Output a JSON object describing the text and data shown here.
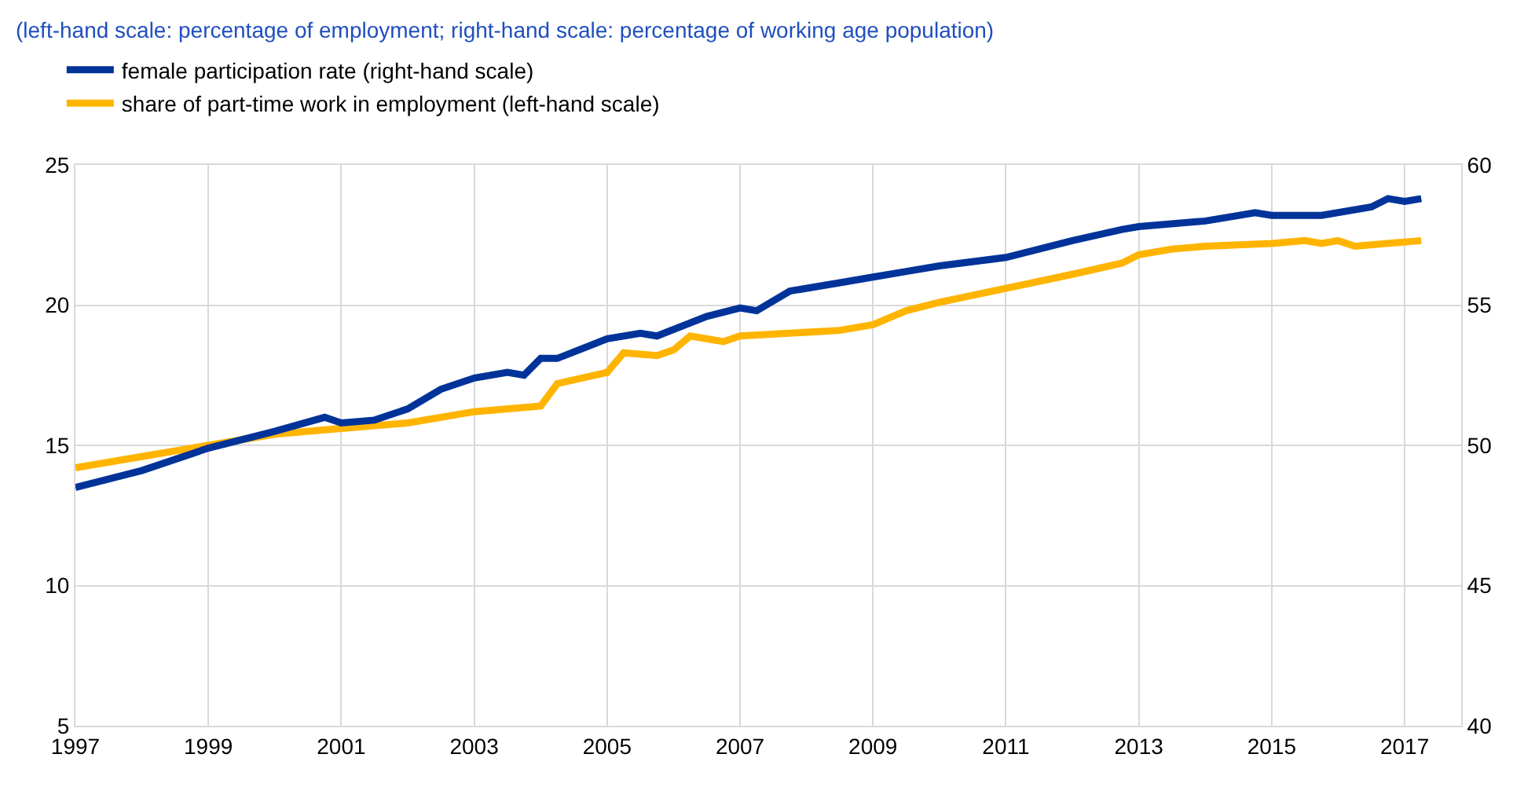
{
  "chart_data": {
    "type": "line",
    "subtitle": "(left-hand scale: percentage of employment; right-hand scale: percentage of working age population)",
    "series": [
      {
        "name": "female participation rate (right-hand scale)",
        "color": "#003399",
        "axis": "y2",
        "x": [
          1997.0,
          1998.0,
          1999.0,
          2000.0,
          2000.75,
          2001.0,
          2001.5,
          2002.0,
          2002.5,
          2003.0,
          2003.5,
          2003.75,
          2004.0,
          2004.25,
          2005.0,
          2005.5,
          2005.75,
          2006.5,
          2007.0,
          2007.25,
          2007.75,
          2008.5,
          2009.0,
          2009.5,
          2010.0,
          2011.0,
          2012.0,
          2012.75,
          2013.0,
          2014.0,
          2014.75,
          2015.0,
          2015.5,
          2015.75,
          2016.5,
          2016.75,
          2017.0,
          2017.25
        ],
        "values": [
          48.5,
          49.1,
          49.9,
          50.5,
          51.0,
          50.8,
          50.9,
          51.3,
          52.0,
          52.4,
          52.6,
          52.5,
          53.1,
          53.1,
          53.8,
          54.0,
          53.9,
          54.6,
          54.9,
          54.8,
          55.5,
          55.8,
          56.0,
          56.2,
          56.4,
          56.7,
          57.3,
          57.7,
          57.8,
          58.0,
          58.3,
          58.2,
          58.2,
          58.2,
          58.5,
          58.8,
          58.7,
          58.8
        ]
      },
      {
        "name": "share of part-time work in employment (left-hand scale)",
        "color": "#ffb400",
        "x": [
          1997.0,
          1998.0,
          1999.0,
          2000.0,
          2001.0,
          2002.0,
          2003.0,
          2004.0,
          2004.25,
          2005.0,
          2005.25,
          2005.75,
          2006.0,
          2006.25,
          2006.75,
          2007.0,
          2008.5,
          2009.0,
          2009.5,
          2010.0,
          2011.0,
          2012.0,
          2012.75,
          2013.0,
          2013.5,
          2014.0,
          2015.0,
          2015.5,
          2015.75,
          2016.0,
          2016.25,
          2017.25
        ],
        "values": [
          14.2,
          14.6,
          15.0,
          15.4,
          15.6,
          15.8,
          16.2,
          16.4,
          17.2,
          17.6,
          18.3,
          18.2,
          18.4,
          18.9,
          18.7,
          18.9,
          19.1,
          19.3,
          19.8,
          20.1,
          20.6,
          21.1,
          21.5,
          21.8,
          22.0,
          22.1,
          22.2,
          22.3,
          22.2,
          22.3,
          22.1,
          22.3
        ]
      }
    ],
    "xlim": [
      1997,
      2017.85
    ],
    "xticks": [
      1997,
      1999,
      2001,
      2003,
      2005,
      2007,
      2009,
      2011,
      2013,
      2015,
      2017
    ],
    "ylim": [
      5,
      25
    ],
    "yticks": [
      5,
      10,
      15,
      20,
      25
    ],
    "y2lim": [
      40,
      60
    ],
    "y2ticks": [
      40,
      45,
      50,
      55,
      60
    ],
    "grid": true,
    "legend": "top left",
    "line_style": "solid",
    "marker": "none"
  }
}
